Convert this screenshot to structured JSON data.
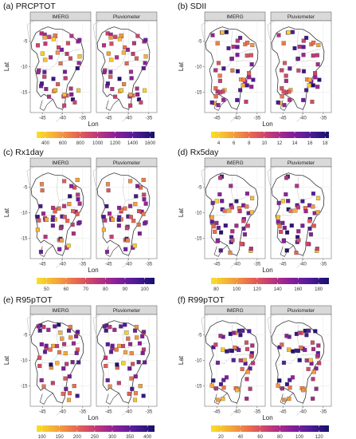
{
  "x_ticks": [
    "-45",
    "-40",
    "-35"
  ],
  "y_ticks": [
    "-5",
    "-10",
    "-15"
  ],
  "panel_names": [
    "IMERG",
    "Pluviometer"
  ],
  "chart_data": [
    {
      "type": "map",
      "title": "(a) PRCPTOT",
      "xlabel": "Lon",
      "ylabel": "Lat",
      "panels": [
        "IMERG",
        "Pluviometer"
      ],
      "xlim": [
        -48,
        -33
      ],
      "ylim": [
        -19,
        -1
      ],
      "colorbar": {
        "min": 300,
        "max": 1650,
        "ticks": [
          "400",
          "600",
          "800",
          "1000",
          "1200",
          "1400",
          "1600"
        ],
        "tick_values": [
          400,
          600,
          800,
          1000,
          1200,
          1400,
          1600
        ]
      },
      "legend_position": "bottom"
    },
    {
      "type": "map",
      "title": "(b) SDII",
      "xlabel": "Lon",
      "ylabel": "Lat",
      "panels": [
        "IMERG",
        "Pluviometer"
      ],
      "xlim": [
        -48,
        -33
      ],
      "ylim": [
        -19,
        -1
      ],
      "colorbar": {
        "min": 3,
        "max": 18.5,
        "ticks": [
          "4",
          "6",
          "8",
          "10",
          "12",
          "14",
          "16",
          "18"
        ],
        "tick_values": [
          4,
          6,
          8,
          10,
          12,
          14,
          16,
          18
        ]
      },
      "legend_position": "bottom"
    },
    {
      "type": "map",
      "title": "(c) Rx1day",
      "xlabel": "Lon",
      "ylabel": "Lat",
      "panels": [
        "IMERG",
        "Pluviometer"
      ],
      "xlim": [
        -48,
        -33
      ],
      "ylim": [
        -19,
        -1
      ],
      "colorbar": {
        "min": 45,
        "max": 105,
        "ticks": [
          "50",
          "60",
          "70",
          "80",
          "90",
          "100"
        ],
        "tick_values": [
          50,
          60,
          70,
          80,
          90,
          100
        ]
      },
      "legend_position": "bottom"
    },
    {
      "type": "map",
      "title": "(d) Rx5day",
      "xlabel": "Lon",
      "ylabel": "Lat",
      "panels": [
        "IMERG",
        "Pluviometer"
      ],
      "xlim": [
        -48,
        -33
      ],
      "ylim": [
        -19,
        -1
      ],
      "colorbar": {
        "min": 75,
        "max": 190,
        "ticks": [
          "80",
          "100",
          "120",
          "140",
          "160",
          "180"
        ],
        "tick_values": [
          80,
          100,
          120,
          140,
          160,
          180
        ]
      },
      "legend_position": "bottom"
    },
    {
      "type": "map",
      "title": "(e) R95pTOT",
      "xlabel": "Lon",
      "ylabel": "Lat",
      "panels": [
        "IMERG",
        "Pluviometer"
      ],
      "xlim": [
        -48,
        -33
      ],
      "ylim": [
        -19,
        -1
      ],
      "colorbar": {
        "min": 85,
        "max": 420,
        "ticks": [
          "100",
          "150",
          "200",
          "250",
          "300",
          "350",
          "400"
        ],
        "tick_values": [
          100,
          150,
          200,
          250,
          300,
          350,
          400
        ]
      },
      "legend_position": "bottom"
    },
    {
      "type": "map",
      "title": "(f) R99pTOT",
      "xlabel": "Lon",
      "ylabel": "Lat",
      "panels": [
        "IMERG",
        "Pluviometer"
      ],
      "xlim": [
        -48,
        -33
      ],
      "ylim": [
        -19,
        -1
      ],
      "colorbar": {
        "min": 10,
        "max": 130,
        "ticks": [
          "20",
          "40",
          "60",
          "80",
          "100",
          "120"
        ],
        "tick_values": [
          20,
          40,
          60,
          80,
          100,
          120
        ]
      },
      "legend_position": "bottom"
    }
  ],
  "colors": {
    "strip_fill": "#d9d9d9",
    "grid": "#ebebeb",
    "outline": "#3a3a3a",
    "outline_light": "#b0b0b0",
    "scale": [
      "#f7e225",
      "#f5a83a",
      "#e9694f",
      "#c23a76",
      "#8d1f9a",
      "#521b9a",
      "#16106a"
    ]
  }
}
